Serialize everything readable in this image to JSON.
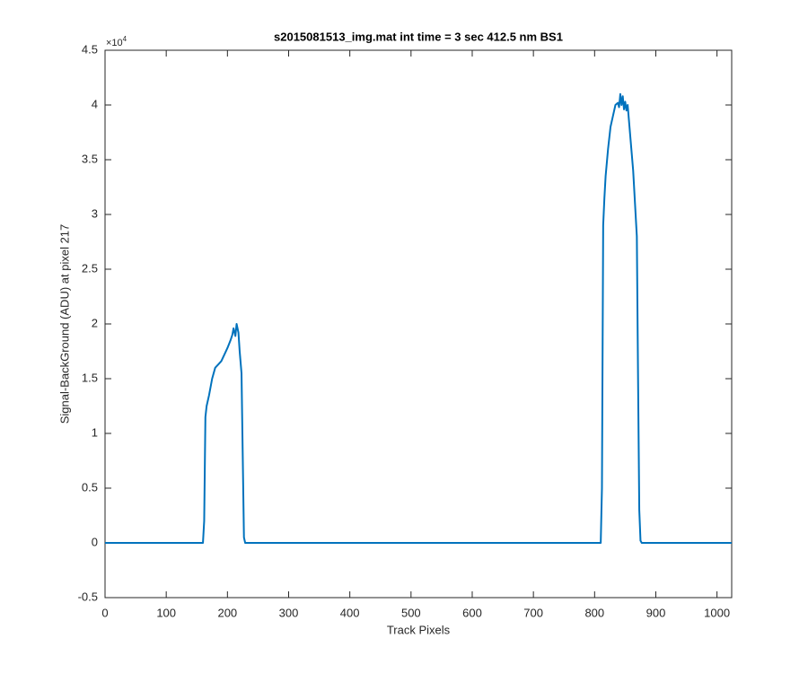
{
  "chart_data": {
    "type": "line",
    "title": "s2015081513_img.mat int time = 3 sec  412.5 nm BS1",
    "x_label": "Track Pixels",
    "y_label": "Signal-BackGround (ADU) at pixel 217",
    "y_multiplier": {
      "base": "×10",
      "exponent": "4"
    },
    "color": "#0072bd",
    "x": [
      0,
      100,
      160,
      162,
      164,
      166,
      170,
      175,
      180,
      185,
      190,
      195,
      200,
      205,
      208,
      210,
      213,
      215,
      218,
      220,
      223,
      225,
      227,
      229,
      300,
      500,
      700,
      810,
      812,
      814,
      816,
      818,
      822,
      826,
      830,
      834,
      838,
      840,
      842,
      844,
      846,
      848,
      850,
      852,
      854,
      857,
      860,
      863,
      866,
      869,
      871,
      873,
      875,
      877,
      900,
      1024
    ],
    "values": [
      0,
      0,
      0,
      2000,
      11500,
      12500,
      13500,
      15000,
      16000,
      16300,
      16600,
      17200,
      17800,
      18500,
      19000,
      19600,
      18900,
      20000,
      19200,
      17500,
      15500,
      8000,
      500,
      0,
      0,
      0,
      0,
      0,
      5000,
      29000,
      31500,
      33500,
      36000,
      38000,
      39000,
      40000,
      40200,
      39800,
      41000,
      40000,
      40800,
      39600,
      40300,
      39500,
      40000,
      38000,
      36000,
      34000,
      31000,
      28000,
      15000,
      3000,
      200,
      0,
      0,
      0
    ],
    "xlim": [
      0,
      1024
    ],
    "ylim": [
      -5000,
      45000
    ],
    "xticks": [
      0,
      100,
      200,
      300,
      400,
      500,
      600,
      700,
      800,
      900,
      1000
    ],
    "yticks": [
      {
        "value": -5000,
        "label": "-0.5"
      },
      0,
      {
        "value": 5000,
        "label": "0.5"
      },
      {
        "value": 10000,
        "label": "1"
      },
      {
        "value": 15000,
        "label": "1.5"
      },
      {
        "value": 20000,
        "label": "2"
      },
      {
        "value": 25000,
        "label": "2.5"
      },
      {
        "value": 30000,
        "label": "3"
      },
      {
        "value": 35000,
        "label": "3.5"
      },
      {
        "value": 40000,
        "label": "4"
      },
      {
        "value": 45000,
        "label": "4.5"
      }
    ],
    "grid": false
  }
}
